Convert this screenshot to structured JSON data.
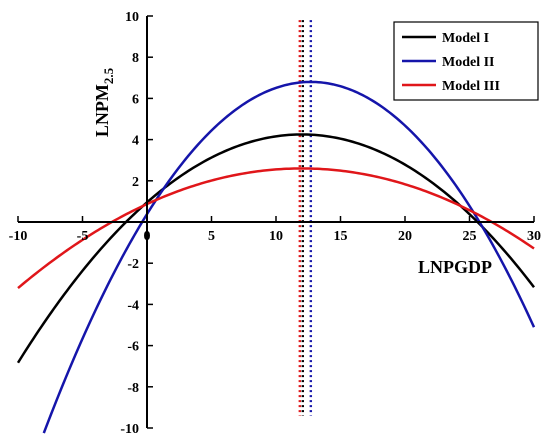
{
  "chart_data": {
    "type": "line",
    "title": "",
    "xlabel": "LNPGDP",
    "ylabel": "LNPM",
    "ylabel_subscript": "2.5",
    "xlim": [
      -10,
      30
    ],
    "ylim": [
      -10,
      10
    ],
    "x_ticks": [
      -10,
      -5,
      0,
      5,
      10,
      15,
      20,
      25,
      30
    ],
    "y_ticks": [
      -10,
      -8,
      -6,
      -4,
      -2,
      2,
      4,
      6,
      8,
      10
    ],
    "x_tick_labels": [
      "-10",
      "-5",
      "0",
      "5",
      "10",
      "15",
      "20",
      "25",
      "30"
    ],
    "y_tick_labels": [
      "-10",
      "-8",
      "-6",
      "-4",
      "-2",
      "2",
      "4",
      "6",
      "8",
      "10"
    ],
    "legend_position": "top-right",
    "grid": false,
    "series": [
      {
        "name": "Model I",
        "color": "#000000",
        "peak_x": 12,
        "peak_y": 4.25,
        "x": [
          -10,
          -5,
          0,
          5,
          10,
          12,
          15,
          20,
          25,
          30
        ],
        "y": [
          -6.9,
          -2.2,
          1.0,
          3.1,
          4.1,
          4.25,
          4.0,
          2.6,
          0.2,
          -3.1
        ]
      },
      {
        "name": "Model II",
        "color": "#1515aa",
        "peak_x": 12.7,
        "peak_y": 6.8,
        "x": [
          -8,
          -5,
          0,
          5,
          10,
          12.7,
          15,
          20,
          25,
          30
        ],
        "y": [
          -10,
          -5.5,
          0.0,
          3.8,
          6.3,
          6.8,
          6.6,
          4.4,
          0.5,
          -5.1
        ]
      },
      {
        "name": "Model III",
        "color": "#e0161a",
        "peak_x": 12,
        "peak_y": 2.6,
        "x": [
          -10,
          -5,
          0,
          5,
          10,
          12,
          15,
          20,
          25,
          30
        ],
        "y": [
          -3.2,
          -0.8,
          1.0,
          2.0,
          2.55,
          2.6,
          2.5,
          1.7,
          0.4,
          -1.3
        ]
      }
    ],
    "reference_lines": [
      {
        "x": 12,
        "color": "#e0161a",
        "style": "dotted"
      },
      {
        "x": 12,
        "color": "#000000",
        "style": "dotted"
      },
      {
        "x": 12.7,
        "color": "#1515aa",
        "style": "dotted"
      }
    ]
  }
}
